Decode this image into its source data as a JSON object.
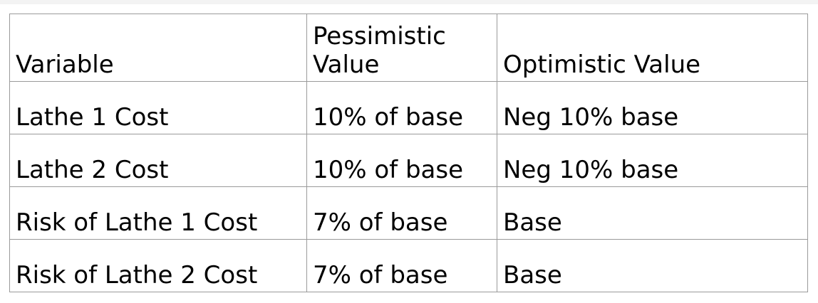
{
  "table": {
    "headers": [
      "Variable",
      "Pessimistic Value",
      "Optimistic Value"
    ],
    "rows": [
      [
        "Lathe 1 Cost",
        "10% of base",
        "Neg 10% base"
      ],
      [
        "Lathe 2 Cost",
        "10% of base",
        "Neg 10% base"
      ],
      [
        "Risk of Lathe 1 Cost",
        "7% of base",
        "Base"
      ],
      [
        "Risk of Lathe 2 Cost",
        "7% of base",
        "Base"
      ]
    ]
  }
}
